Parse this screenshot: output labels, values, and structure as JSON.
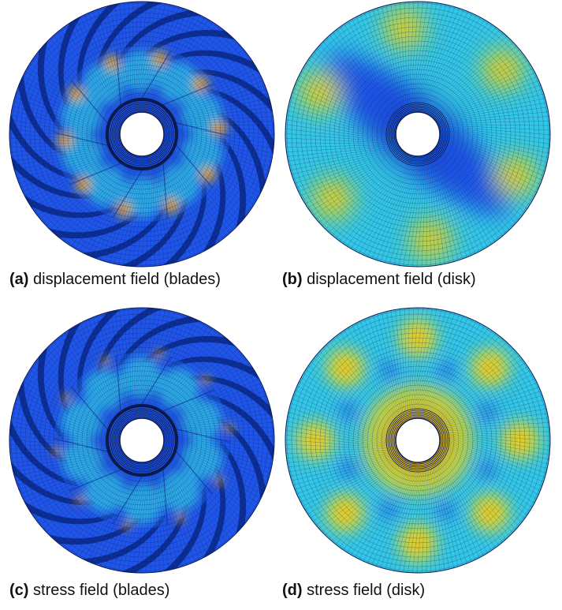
{
  "figure": {
    "panels": [
      {
        "id": "a",
        "label": "(a)",
        "caption": "displacement field (blades)"
      },
      {
        "id": "b",
        "label": "(b)",
        "caption": "displacement field (disk)"
      },
      {
        "id": "c",
        "label": "(c)",
        "caption": "stress field (blades)"
      },
      {
        "id": "d",
        "label": "(d)",
        "caption": "stress field (disk)"
      }
    ]
  },
  "colors": {
    "base_blue": "#1f55e8",
    "dark_blue": "#0a2a8c",
    "cyan": "#33c6e6",
    "green": "#9fd84a",
    "yellow": "#f2e11a",
    "orange": "#f08a1a",
    "red": "#d9261c",
    "hub_line": "#0b1a4a"
  }
}
